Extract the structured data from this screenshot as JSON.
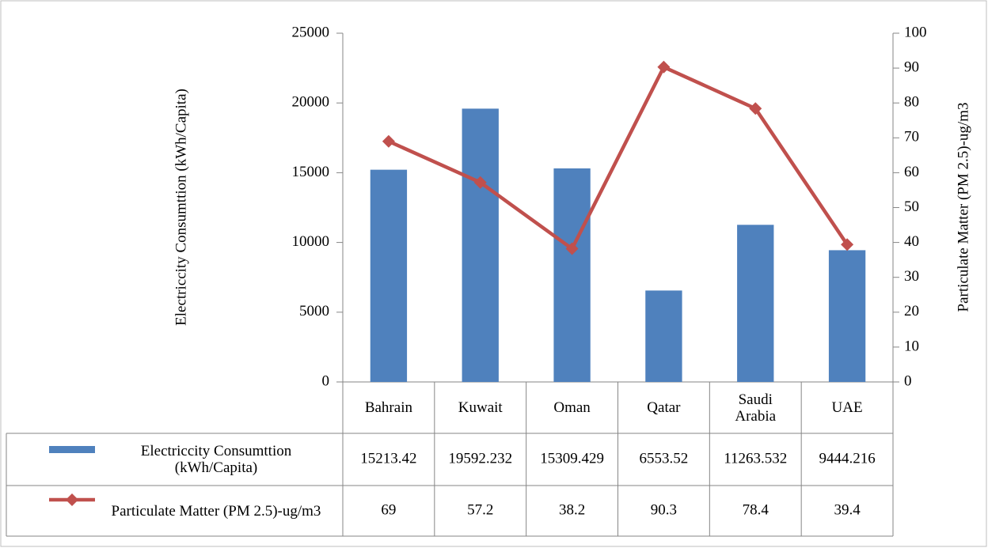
{
  "chart_data": {
    "type": "bar",
    "y_label": "Electriccity Consumttion (kWh/Capita)",
    "y2_label": "Particulate Matter (PM 2.5)-ug/m3",
    "categories": [
      "Bahrain",
      "Kuwait",
      "Oman",
      "Qatar",
      "Saudi Arabia",
      "UAE"
    ],
    "series": [
      {
        "name": "Electriccity Consumttion (kWh/Capita)",
        "type": "bar",
        "color": "#4f81bd",
        "values": [
          15213.42,
          19592.232,
          15309.429,
          6553.52,
          11263.532,
          9444.216
        ]
      },
      {
        "name": "Particulate Matter (PM 2.5)-ug/m3",
        "type": "line",
        "axis": "y2",
        "color": "#c0504d",
        "values": [
          69,
          57.2,
          38.2,
          90.3,
          78.4,
          39.4
        ]
      }
    ],
    "ylim": [
      0,
      25000
    ],
    "yticks": [
      0,
      5000,
      10000,
      15000,
      20000,
      25000
    ],
    "y2lim": [
      0,
      100
    ],
    "y2ticks": [
      0,
      10,
      20,
      30,
      40,
      50,
      60,
      70,
      80,
      90,
      100
    ],
    "data_table": true
  }
}
